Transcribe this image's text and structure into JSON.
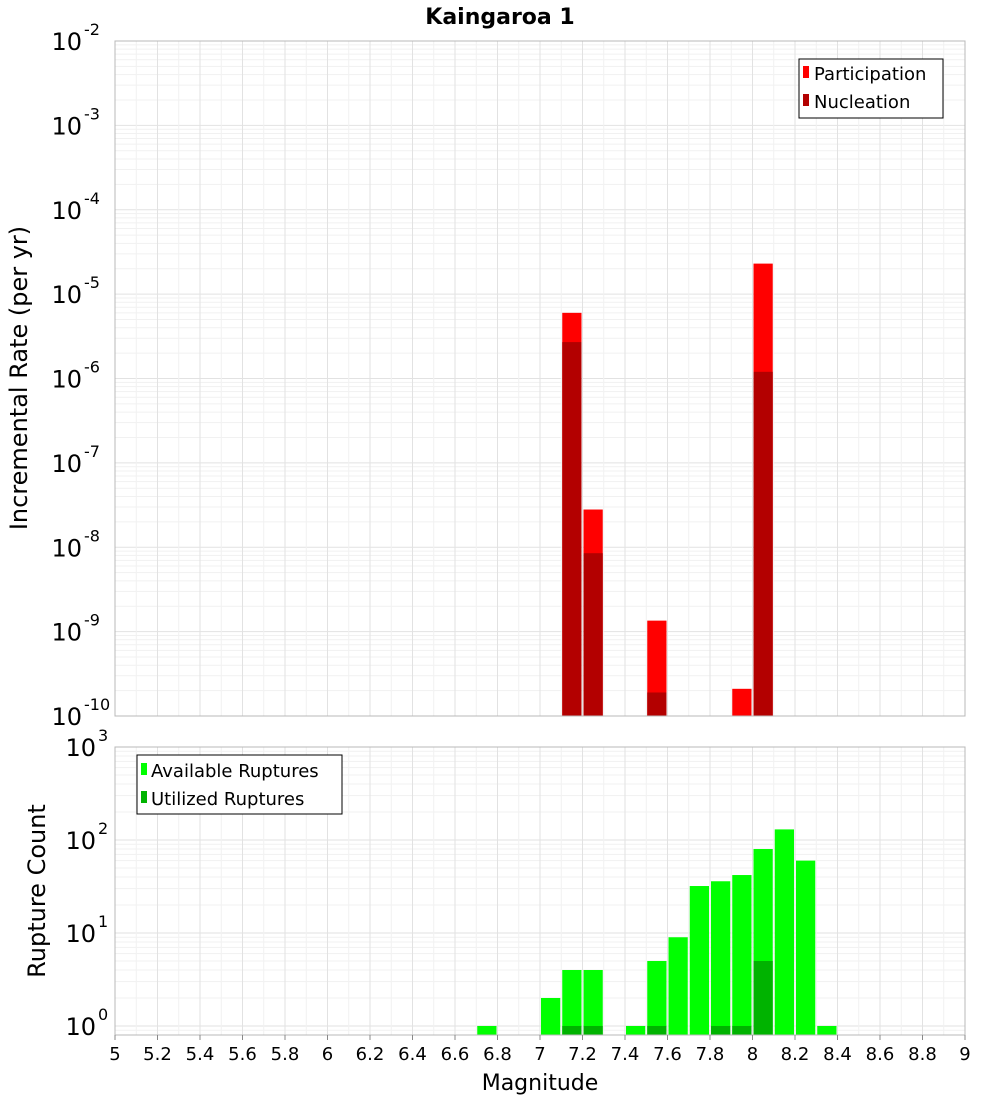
{
  "title": "Kaingaroa 1",
  "chart_data": [
    {
      "type": "bar",
      "ylabel": "Incremental Rate (per yr)",
      "yscale": "log",
      "ylim": [
        1e-10,
        0.01
      ],
      "xlim": [
        5,
        9
      ],
      "bin_width": 0.1,
      "yticks": [
        {
          "base": "10",
          "exp": "-10"
        },
        {
          "base": "10",
          "exp": "-9"
        },
        {
          "base": "10",
          "exp": "-8"
        },
        {
          "base": "10",
          "exp": "-7"
        },
        {
          "base": "10",
          "exp": "-6"
        },
        {
          "base": "10",
          "exp": "-5"
        },
        {
          "base": "10",
          "exp": "-4"
        },
        {
          "base": "10",
          "exp": "-3"
        },
        {
          "base": "10",
          "exp": "-2"
        }
      ],
      "legend": {
        "position": "top-right"
      },
      "series": [
        {
          "name": "Participation",
          "color": "#ff0000",
          "x": [
            7.15,
            7.25,
            7.55,
            7.95,
            8.05
          ],
          "values": [
            6e-06,
            2.8e-08,
            1.35e-09,
            2.1e-10,
            2.3e-05
          ]
        },
        {
          "name": "Nucleation",
          "color": "#b30000",
          "x": [
            7.15,
            7.25,
            7.55,
            8.05
          ],
          "values": [
            2.7e-06,
            8.5e-09,
            1.9e-10,
            1.2e-06
          ]
        }
      ]
    },
    {
      "type": "bar",
      "ylabel": "Rupture Count",
      "xlabel": "Magnitude",
      "yscale": "log",
      "ylim": [
        0.8,
        1000
      ],
      "xlim": [
        5,
        9
      ],
      "bin_width": 0.1,
      "yticks": [
        {
          "base": "10",
          "exp": "0"
        },
        {
          "base": "10",
          "exp": "1"
        },
        {
          "base": "10",
          "exp": "2"
        },
        {
          "base": "10",
          "exp": "3"
        }
      ],
      "xticks": [
        "5",
        "5.2",
        "5.4",
        "5.6",
        "5.8",
        "6",
        "6.2",
        "6.4",
        "6.6",
        "6.8",
        "7",
        "7.2",
        "7.4",
        "7.6",
        "7.8",
        "8",
        "8.2",
        "8.4",
        "8.6",
        "8.8",
        "9"
      ],
      "legend": {
        "position": "top-left"
      },
      "series": [
        {
          "name": "Available Ruptures",
          "color": "#00ff00",
          "x": [
            6.75,
            7.05,
            7.15,
            7.25,
            7.45,
            7.55,
            7.65,
            7.75,
            7.85,
            7.95,
            8.05,
            8.15,
            8.25,
            8.35
          ],
          "values": [
            1,
            2,
            4,
            4,
            1,
            5,
            9,
            32,
            36,
            42,
            80,
            130,
            60,
            1
          ]
        },
        {
          "name": "Utilized Ruptures",
          "color": "#00b300",
          "x": [
            7.15,
            7.25,
            7.55,
            7.85,
            7.95,
            8.05
          ],
          "values": [
            1,
            1,
            1,
            1,
            1,
            5
          ]
        }
      ]
    }
  ]
}
